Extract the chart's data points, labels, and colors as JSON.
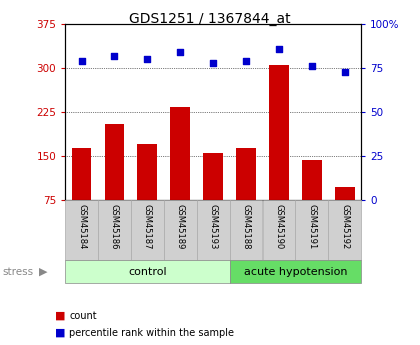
{
  "title": "GDS1251 / 1367844_at",
  "categories": [
    "GSM45184",
    "GSM45186",
    "GSM45187",
    "GSM45189",
    "GSM45193",
    "GSM45188",
    "GSM45190",
    "GSM45191",
    "GSM45192"
  ],
  "bar_values": [
    163,
    205,
    170,
    233,
    155,
    163,
    305,
    143,
    97
  ],
  "dot_values": [
    79,
    82,
    80,
    84,
    78,
    79,
    86,
    76,
    73
  ],
  "bar_color": "#cc0000",
  "dot_color": "#0000cc",
  "ylim_left": [
    75,
    375
  ],
  "ylim_right": [
    0,
    100
  ],
  "yticks_left": [
    75,
    150,
    225,
    300,
    375
  ],
  "yticks_right": [
    0,
    25,
    50,
    75,
    100
  ],
  "control_samples": 5,
  "acute_samples": 4,
  "control_label": "control",
  "acute_label": "acute hypotension",
  "stress_label": "stress",
  "legend_bar": "count",
  "legend_dot": "percentile rank within the sample",
  "bg_color_tick": "#d0d0d0",
  "bg_color_control": "#ccffcc",
  "bg_color_acute": "#66dd66",
  "ytick_right_labels": [
    "0",
    "25",
    "50",
    "75",
    "100%"
  ]
}
